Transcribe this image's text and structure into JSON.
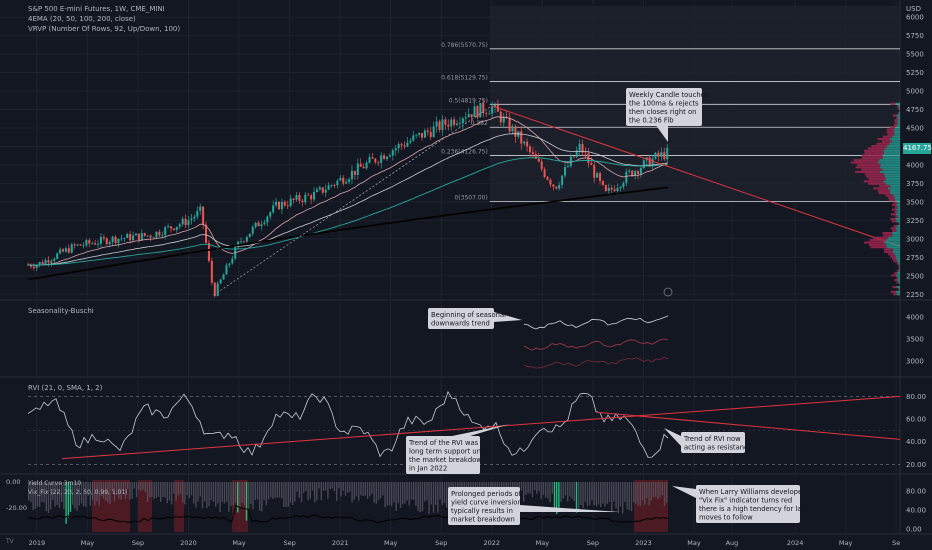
{
  "header": {
    "title": "S&P 500 E-mini Futures, 1W, CME_MINI",
    "indicator1": "4EMA (20, 50, 100, 200, close)",
    "indicator2": "VRVP (Number Of Rows, 92, Up/Down, 100)"
  },
  "currency": "USD",
  "price_badge": "4167.75",
  "panes": {
    "seasonality": "Seasonality-Buschi",
    "rvi": "RVI (21, 0, SMA, 1, 2)",
    "vixfix_a": "Yield Curve 3m10",
    "vixfix_b": "Vix_Fix (22, 20, 2, 50, 0.99, 1.01)"
  },
  "annotations": {
    "weekly_candle": [
      "Weekly Candle touches",
      "the 100ma & rejects",
      "then closes right on",
      "the  0.236 Fib"
    ],
    "seasonal": [
      "Beginning of seasonal",
      "downwards trend"
    ],
    "rvi_support": [
      "Trend of the RVI was",
      "long term support until",
      "the market breakdown",
      "in Jan 2022"
    ],
    "rvi_resistance": [
      "Trend of RVI now",
      "acting as resistance"
    ],
    "yield_curve": [
      "Prolonged periods of",
      "yield curve inversion",
      "typically results in",
      "market breakdown"
    ],
    "vix_fix": [
      "When Larry Williams developed",
      "\"Vix Fix\" indicator turns red",
      "there is a high tendency for large",
      "moves to follow"
    ]
  },
  "logo": "TV",
  "colors": {
    "background": "#131722",
    "up": "#26a69a",
    "down": "#ef5350",
    "trend_line": "#e0353d",
    "ema200": "#000000",
    "badge": "#26a69a"
  },
  "chart_data": [
    {
      "type": "candlestick",
      "title": "S&P 500 E-mini Futures, 1W, CME_MINI",
      "x_ticks": [
        "2019",
        "May",
        "Sep",
        "2020",
        "May",
        "Sep",
        "2021",
        "May",
        "Sep",
        "2022",
        "May",
        "Sep",
        "2023",
        "May",
        "Aug",
        "2024",
        "May",
        "Se"
      ],
      "y_ticks": [
        2250,
        2500,
        2750,
        3000,
        3250,
        3500,
        3750,
        4000,
        4250,
        4500,
        4750,
        5000,
        5250,
        5500,
        5750,
        6000
      ],
      "ylim": [
        2200,
        6150
      ],
      "fib_levels": [
        {
          "label": "0.786(5570.75)",
          "value": 5570.75
        },
        {
          "label": "0.618(5129.75)",
          "value": 5129.75
        },
        {
          "label": "0.5(4819.75)",
          "value": 4819.75
        },
        {
          "label": "0.382",
          "value": 4510
        },
        {
          "label": "0.236(4126.75)",
          "value": 4126.75
        },
        {
          "label": "0(3507.00)",
          "value": 3507.0
        }
      ],
      "last_price": 4167.75,
      "close_path": [
        [
          "2019-01",
          2650
        ],
        [
          "2019-04",
          2900
        ],
        [
          "2019-07",
          3000
        ],
        [
          "2019-10",
          3050
        ],
        [
          "2020-01",
          3250
        ],
        [
          "2020-02",
          3380
        ],
        [
          "2020-03",
          2240
        ],
        [
          "2020-05",
          2950
        ],
        [
          "2020-08",
          3450
        ],
        [
          "2020-11",
          3600
        ],
        [
          "2021-02",
          3900
        ],
        [
          "2021-05",
          4200
        ],
        [
          "2021-08",
          4450
        ],
        [
          "2021-11",
          4700
        ],
        [
          "2022-01",
          4780
        ],
        [
          "2022-03",
          4400
        ],
        [
          "2022-06",
          3700
        ],
        [
          "2022-08",
          4250
        ],
        [
          "2022-10",
          3600
        ],
        [
          "2022-12",
          3900
        ],
        [
          "2023-02",
          4100
        ],
        [
          "2023-03",
          4167.75
        ]
      ]
    },
    {
      "type": "line",
      "title": "RVI (21, 0, SMA, 1, 2)",
      "y_ticks": [
        20.0,
        40.0,
        60.0,
        80.0
      ],
      "ylim": [
        15,
        90
      ]
    },
    {
      "type": "bar",
      "title": "Vix_Fix (22, 20, 2, 50, 0.99, 1.01)",
      "y_ticks_left": [
        "0.00",
        "-20.00"
      ],
      "y_ticks_right": [
        "0.00",
        "40.00",
        "80.00"
      ]
    }
  ]
}
